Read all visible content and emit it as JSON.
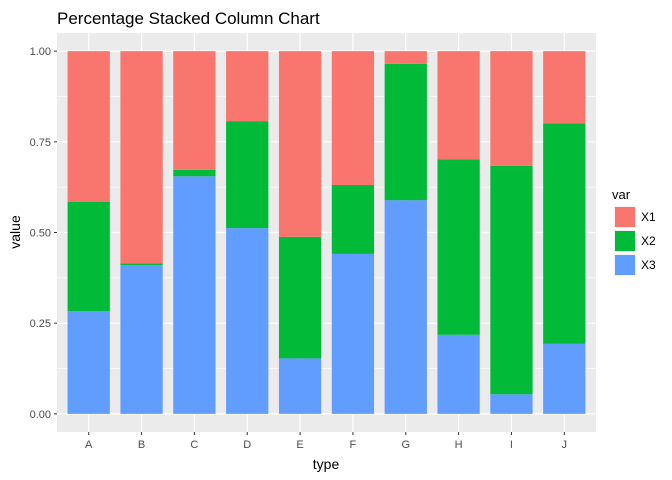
{
  "chart_data": {
    "type": "bar",
    "stacked": "percent",
    "title": "Percentage Stacked Column Chart",
    "xlabel": "type",
    "ylabel": "value",
    "ylim": [
      0,
      1
    ],
    "yticks": [
      0,
      0.25,
      0.5,
      0.75,
      1
    ],
    "ytick_labels": [
      "0.00",
      "0.25",
      "0.50",
      "0.75",
      "1.00"
    ],
    "categories": [
      "A",
      "B",
      "C",
      "D",
      "E",
      "F",
      "G",
      "H",
      "I",
      "J"
    ],
    "legend_title": "var",
    "legend_position": "right",
    "grid": true,
    "series": [
      {
        "name": "X1",
        "color": "#F8766D",
        "values": [
          0.415,
          0.585,
          0.327,
          0.193,
          0.512,
          0.369,
          0.035,
          0.298,
          0.316,
          0.199
        ]
      },
      {
        "name": "X2",
        "color": "#00BA38",
        "values": [
          0.302,
          0.005,
          0.018,
          0.295,
          0.335,
          0.19,
          0.376,
          0.484,
          0.63,
          0.608
        ]
      },
      {
        "name": "X3",
        "color": "#619CFF",
        "values": [
          0.283,
          0.41,
          0.655,
          0.512,
          0.153,
          0.441,
          0.589,
          0.218,
          0.054,
          0.193
        ]
      }
    ]
  }
}
